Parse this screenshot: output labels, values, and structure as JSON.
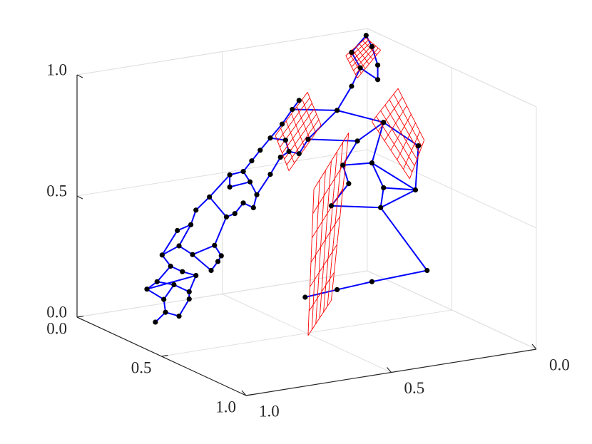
{
  "chart_data": {
    "type": "graph3d",
    "xlim": [
      0,
      1
    ],
    "ylim": [
      0,
      1
    ],
    "zlim": [
      0,
      1
    ],
    "xticks": [
      {
        "value": 0,
        "label": "0.0"
      },
      {
        "value": 0.5,
        "label": "0.5"
      },
      {
        "value": 1,
        "label": "1.0"
      }
    ],
    "yticks": [
      {
        "value": 0,
        "label": "0.0"
      },
      {
        "value": 0.5,
        "label": "0.5"
      },
      {
        "value": 1,
        "label": "1.0"
      }
    ],
    "zticks": [
      {
        "value": 0,
        "label": "0.0"
      },
      {
        "value": 0.5,
        "label": "0.5"
      },
      {
        "value": 1,
        "label": "1.0"
      }
    ],
    "grid": true,
    "node_color": "#000000",
    "edge_color": "#0000ff",
    "mesh_color": "#ff0000",
    "nodes": [
      [
        0.8,
        0.12,
        -0.02
      ],
      [
        0.8,
        0.18,
        0.04
      ],
      [
        0.8,
        0.26,
        0.05
      ],
      [
        0.8,
        0.32,
        0.14
      ],
      [
        0.8,
        0.17,
        0.09
      ],
      [
        0.8,
        0.07,
        0.1
      ],
      [
        0.8,
        0.13,
        0.15
      ],
      [
        0.8,
        0.23,
        0.17
      ],
      [
        0.8,
        0.32,
        0.17
      ],
      [
        0.8,
        0.21,
        0.24
      ],
      [
        0.8,
        0.28,
        0.24
      ],
      [
        0.8,
        0.36,
        0.25
      ],
      [
        0.8,
        0.16,
        0.27
      ],
      [
        0.8,
        0.26,
        0.34
      ],
      [
        0.8,
        0.34,
        0.33
      ],
      [
        0.8,
        0.45,
        0.3
      ],
      [
        0.8,
        0.49,
        0.35
      ],
      [
        0.8,
        0.47,
        0.41
      ],
      [
        0.8,
        0.51,
        0.38
      ],
      [
        0.8,
        0.25,
        0.4
      ],
      [
        0.8,
        0.33,
        0.45
      ],
      [
        0.8,
        0.36,
        0.52
      ],
      [
        0.8,
        0.44,
        0.6
      ],
      [
        0.8,
        0.56,
        0.73
      ],
      [
        0.8,
        0.54,
        0.55
      ],
      [
        0.8,
        0.59,
        0.58
      ],
      [
        0.8,
        0.64,
        0.64
      ],
      [
        0.8,
        0.7,
        0.64
      ],
      [
        0.8,
        0.72,
        0.7
      ],
      [
        0.8,
        0.68,
        0.74
      ],
      [
        0.8,
        0.56,
        0.68
      ],
      [
        0.8,
        0.64,
        0.77
      ],
      [
        0.8,
        0.69,
        0.83
      ],
      [
        0.8,
        0.74,
        0.89
      ],
      [
        0.8,
        0.8,
        0.96
      ],
      [
        0.8,
        0.87,
        1.04
      ],
      [
        0.8,
        0.93,
        1.12
      ],
      [
        0.8,
        0.97,
        1.17
      ],
      [
        0.8,
        0.8,
        0.81
      ],
      [
        0.8,
        0.86,
        0.9
      ],
      [
        0.8,
        0.91,
        0.94
      ],
      [
        0.8,
        0.89,
        0.98
      ],
      [
        0.8,
        0.97,
        0.95
      ],
      [
        0.68,
        0.8,
        0.28
      ],
      [
        0.57,
        0.8,
        0.29
      ],
      [
        0.45,
        0.8,
        0.3
      ],
      [
        0.26,
        0.8,
        0.31
      ],
      [
        0.42,
        0.8,
        0.6
      ],
      [
        0.59,
        0.8,
        0.64
      ],
      [
        0.53,
        0.8,
        0.72
      ],
      [
        0.41,
        0.8,
        0.68
      ],
      [
        0.3,
        0.8,
        0.65
      ],
      [
        0.55,
        0.8,
        0.8
      ],
      [
        0.45,
        0.8,
        0.79
      ],
      [
        0.29,
        0.8,
        0.83
      ],
      [
        0.5,
        0.8,
        0.89
      ],
      [
        0.41,
        0.8,
        0.95
      ],
      [
        0.57,
        0.8,
        1.03
      ],
      [
        0.67,
        0.8,
        0.93
      ],
      [
        0.52,
        0.8,
        1.12
      ],
      [
        0.43,
        0.8,
        1.13
      ],
      [
        0.47,
        0.8,
        1.32
      ],
      [
        0.52,
        0.8,
        1.26
      ],
      [
        0.49,
        0.8,
        1.19
      ],
      [
        0.43,
        0.8,
        1.19
      ],
      [
        0.45,
        0.8,
        1.27
      ]
    ],
    "edges": [
      [
        0,
        1
      ],
      [
        1,
        2
      ],
      [
        2,
        3
      ],
      [
        1,
        4
      ],
      [
        4,
        5
      ],
      [
        5,
        6
      ],
      [
        6,
        7
      ],
      [
        7,
        8
      ],
      [
        8,
        3
      ],
      [
        4,
        7
      ],
      [
        6,
        9
      ],
      [
        9,
        10
      ],
      [
        10,
        11
      ],
      [
        11,
        8
      ],
      [
        9,
        12
      ],
      [
        12,
        13
      ],
      [
        13,
        14
      ],
      [
        14,
        15
      ],
      [
        15,
        16
      ],
      [
        16,
        18
      ],
      [
        18,
        17
      ],
      [
        17,
        14
      ],
      [
        12,
        19
      ],
      [
        19,
        20
      ],
      [
        20,
        13
      ],
      [
        20,
        21
      ],
      [
        21,
        22
      ],
      [
        22,
        23
      ],
      [
        22,
        24
      ],
      [
        24,
        25
      ],
      [
        25,
        26
      ],
      [
        26,
        27
      ],
      [
        27,
        28
      ],
      [
        28,
        29
      ],
      [
        29,
        30
      ],
      [
        30,
        23
      ],
      [
        23,
        31
      ],
      [
        31,
        32
      ],
      [
        32,
        33
      ],
      [
        33,
        34
      ],
      [
        34,
        35
      ],
      [
        35,
        36
      ],
      [
        36,
        37
      ],
      [
        29,
        31
      ],
      [
        28,
        38
      ],
      [
        38,
        39
      ],
      [
        39,
        40
      ],
      [
        40,
        42
      ],
      [
        41,
        34
      ],
      [
        41,
        40
      ],
      [
        17,
        24
      ],
      [
        5,
        11
      ],
      [
        43,
        44
      ],
      [
        44,
        45
      ],
      [
        45,
        46
      ],
      [
        46,
        47
      ],
      [
        47,
        50
      ],
      [
        47,
        48
      ],
      [
        48,
        49
      ],
      [
        49,
        52
      ],
      [
        52,
        53
      ],
      [
        53,
        50
      ],
      [
        50,
        51
      ],
      [
        51,
        53
      ],
      [
        51,
        54
      ],
      [
        54,
        56
      ],
      [
        56,
        53
      ],
      [
        56,
        55
      ],
      [
        55,
        52
      ],
      [
        55,
        58
      ],
      [
        58,
        57
      ],
      [
        57,
        59
      ],
      [
        57,
        56
      ],
      [
        59,
        63
      ],
      [
        63,
        62
      ],
      [
        63,
        60
      ],
      [
        62,
        61
      ],
      [
        61,
        65
      ],
      [
        65,
        64
      ],
      [
        64,
        60
      ],
      [
        42,
        58
      ],
      [
        36,
        57
      ],
      [
        47,
        51
      ]
    ],
    "meshes": [
      {
        "corners": [
          [
            0.54,
            0.8,
            1.25
          ],
          [
            0.47,
            0.8,
            1.31
          ],
          [
            0.42,
            0.8,
            1.25
          ],
          [
            0.5,
            0.8,
            1.15
          ]
        ]
      },
      {
        "corners": [
          [
            0.8,
            0.83,
            0.98
          ],
          [
            0.8,
            1.02,
            1.22
          ],
          [
            0.8,
            1.1,
            1.11
          ],
          [
            0.8,
            0.91,
            0.86
          ]
        ]
      },
      {
        "corners": [
          [
            0.45,
            0.8,
            0.96
          ],
          [
            0.36,
            0.8,
            1.08
          ],
          [
            0.27,
            0.8,
            0.85
          ],
          [
            0.32,
            0.8,
            0.7
          ]
        ]
      },
      {
        "corners": [
          [
            0.67,
            0.8,
            0.12
          ],
          [
            0.65,
            0.8,
            0.72
          ],
          [
            0.53,
            0.8,
            0.93
          ],
          [
            0.59,
            0.8,
            0.25
          ]
        ]
      }
    ]
  }
}
